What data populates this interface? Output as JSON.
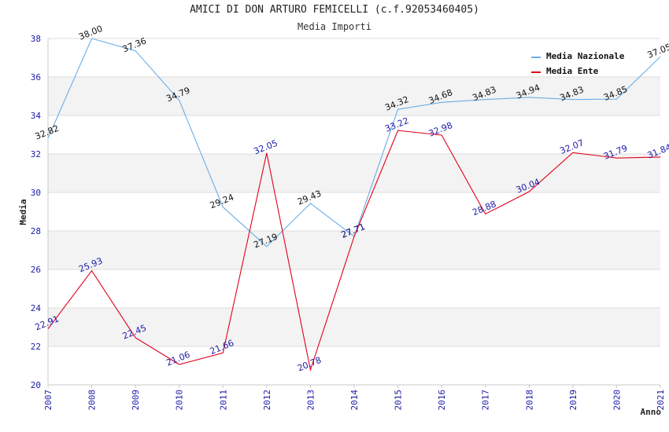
{
  "chart_data": {
    "type": "line",
    "title": "AMICI DI DON ARTURO FEMICELLI (c.f.92053460405)",
    "subtitle": "Media Importi",
    "xlabel": "Anno",
    "ylabel": "Media",
    "x": [
      "2007",
      "2008",
      "2009",
      "2010",
      "2011",
      "2012",
      "2013",
      "2014",
      "2015",
      "2016",
      "2017",
      "2018",
      "2019",
      "2020",
      "2021"
    ],
    "ylim": [
      20,
      38
    ],
    "yticks": [
      20,
      22,
      24,
      26,
      28,
      30,
      32,
      34,
      36,
      38
    ],
    "ytick_labels": [
      "20",
      "22",
      "24",
      "26",
      "28",
      "30",
      "32",
      "34",
      "36",
      "38"
    ],
    "grid": true,
    "legend_position": "top-right",
    "series": [
      {
        "name": "Media Nazionale",
        "color": "#6aaee6",
        "label_color": "#111111",
        "values": [
          32.82,
          38.0,
          37.36,
          34.79,
          29.24,
          27.19,
          29.43,
          27.71,
          34.32,
          34.68,
          34.83,
          34.94,
          34.83,
          34.85,
          37.05
        ],
        "labels": [
          "32.82",
          "38.00",
          "37.36",
          "34.79",
          "29.24",
          "27.19",
          "29.43",
          "27.71",
          "34.32",
          "34.68",
          "34.83",
          "34.94",
          "34.83",
          "34.85",
          "37.05"
        ]
      },
      {
        "name": "Media Ente",
        "color": "#e0001b",
        "label_color": "#1a1aa8",
        "values": [
          22.91,
          25.93,
          22.45,
          21.06,
          21.66,
          32.05,
          20.78,
          27.71,
          33.22,
          32.98,
          28.88,
          30.04,
          32.07,
          31.79,
          31.84
        ],
        "labels": [
          "22.91",
          "25.93",
          "22.45",
          "21.06",
          "21.66",
          "32.05",
          "20.78",
          "27.71",
          "33.22",
          "32.98",
          "28.88",
          "30.04",
          "32.07",
          "31.79",
          "31.84"
        ]
      }
    ]
  }
}
